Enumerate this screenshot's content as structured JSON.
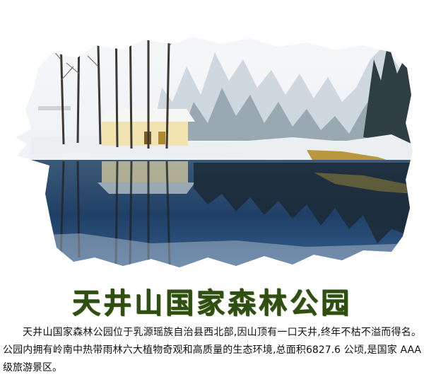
{
  "title": "天井山国家森林公园",
  "description": "天井山国家森林公园位于乳源瑶族自治县西北部,因山顶有一口天井,终年不枯不溢而得名。公园内拥有岭南中热带雨林六大植物奇观和高质量的生态环境,总面积6827.6 公顷,是国家 AAA 级旅游景区。",
  "colors": {
    "title": "#2f4f12",
    "sky": "#f4f6f8",
    "snow_forest": "#dfe6ec",
    "dark_forest": "#3c4a50",
    "water": "#2a4f7c",
    "house_wall": "#f2e4b0"
  },
  "image": {
    "subject": "snow-covered-forest-with-lake-reflection",
    "style": "ink-splash-edge"
  }
}
